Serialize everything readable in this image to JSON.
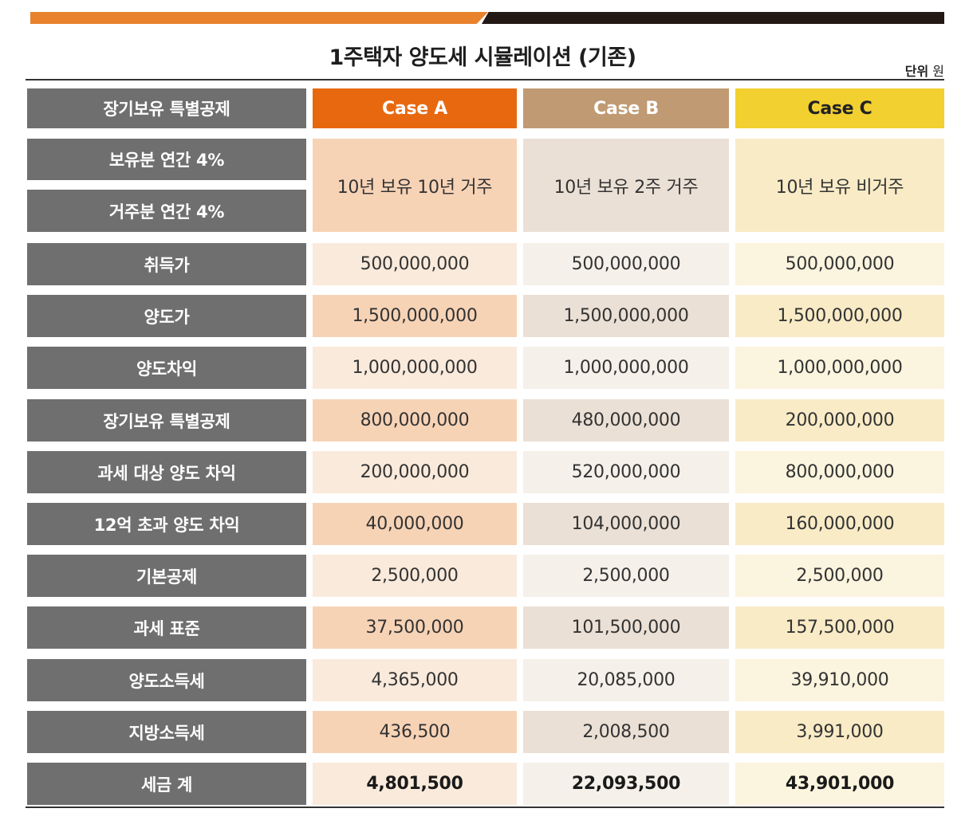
{
  "title": "1주택자 양도세 시뮬레이션 (기존)",
  "unit_label": "단위",
  "unit_value": "원",
  "colors": {
    "accent_orange": "#e8822c",
    "accent_dark": "#231814",
    "label_bg": "#6f6f6f",
    "case_a": "#e8680f",
    "case_b": "#c09a72",
    "case_c": "#f2d030"
  },
  "chart_data": {
    "type": "table",
    "title": "1주택자 양도세 시뮬레이션 (기존)",
    "header_label": "장기보유 특별공제",
    "columns": [
      "Case A",
      "Case B",
      "Case C"
    ],
    "deduction_labels": [
      "보유분 연간 4%",
      "거주분 연간 4%"
    ],
    "scenario": [
      "10년 보유 10년 거주",
      "10년 보유 2주 거주",
      "10년 보유 비거주"
    ],
    "rows": [
      {
        "label": "취득가",
        "values": [
          "500,000,000",
          "500,000,000",
          "500,000,000"
        ]
      },
      {
        "label": "양도가",
        "values": [
          "1,500,000,000",
          "1,500,000,000",
          "1,500,000,000"
        ]
      },
      {
        "label": "양도차익",
        "values": [
          "1,000,000,000",
          "1,000,000,000",
          "1,000,000,000"
        ]
      },
      {
        "label": "장기보유 특별공제",
        "values": [
          "800,000,000",
          "480,000,000",
          "200,000,000"
        ]
      },
      {
        "label": "과세 대상 양도 차익",
        "values": [
          "200,000,000",
          "520,000,000",
          "800,000,000"
        ]
      },
      {
        "label": "12억 초과 양도 차익",
        "values": [
          "40,000,000",
          "104,000,000",
          "160,000,000"
        ]
      },
      {
        "label": "기본공제",
        "values": [
          "2,500,000",
          "2,500,000",
          "2,500,000"
        ]
      },
      {
        "label": "과세 표준",
        "values": [
          "37,500,000",
          "101,500,000",
          "157,500,000"
        ]
      },
      {
        "label": "양도소득세",
        "values": [
          "4,365,000",
          "20,085,000",
          "39,910,000"
        ]
      },
      {
        "label": "지방소득세",
        "values": [
          "436,500",
          "2,008,500",
          "3,991,000"
        ]
      },
      {
        "label": "세금 계",
        "values": [
          "4,801,500",
          "22,093,500",
          "43,901,000"
        ]
      }
    ]
  }
}
